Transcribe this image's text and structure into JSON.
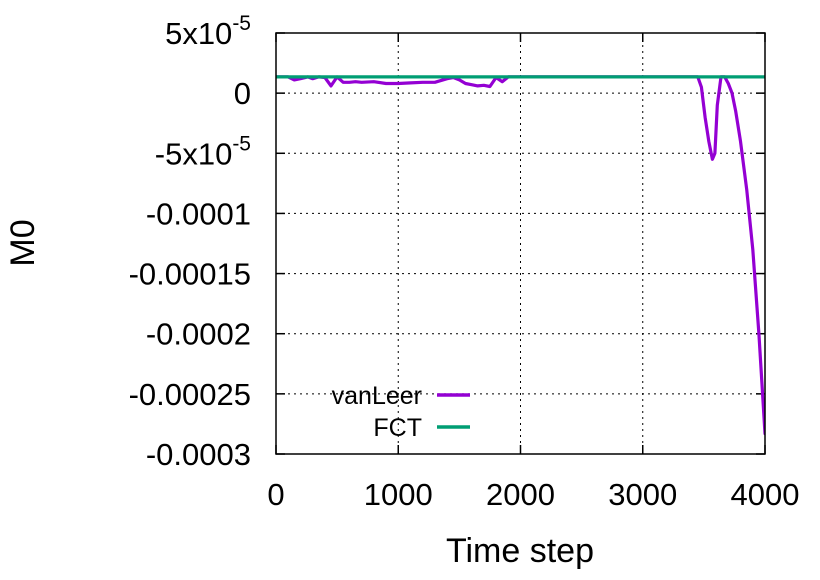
{
  "chart_data": {
    "type": "line",
    "title": "",
    "xlabel": "Time step",
    "ylabel": "M0",
    "xlim": [
      0,
      4000
    ],
    "ylim": [
      -0.0003,
      5e-05
    ],
    "grid": true,
    "legend_position": "bottom-left",
    "x_ticks": [
      {
        "value": 0,
        "label": "0"
      },
      {
        "value": 1000,
        "label": "1000"
      },
      {
        "value": 2000,
        "label": "2000"
      },
      {
        "value": 3000,
        "label": "3000"
      },
      {
        "value": 4000,
        "label": "4000"
      }
    ],
    "y_ticks": [
      {
        "value": 5e-05,
        "mantissa": "5x10",
        "exponent": "-5"
      },
      {
        "value": 0,
        "mantissa": "0"
      },
      {
        "value": -5e-05,
        "mantissa": "-5x10",
        "exponent": "-5"
      },
      {
        "value": -0.0001,
        "mantissa": "-0.0001"
      },
      {
        "value": -0.00015,
        "mantissa": "-0.00015"
      },
      {
        "value": -0.0002,
        "mantissa": "-0.0002"
      },
      {
        "value": -0.00025,
        "mantissa": "-0.00025"
      },
      {
        "value": -0.0003,
        "mantissa": "-0.0003"
      }
    ],
    "series": [
      {
        "name": "vanLeer",
        "color": "#9400d3",
        "x": [
          0,
          100,
          150,
          200,
          260,
          300,
          350,
          400,
          450,
          500,
          550,
          600,
          650,
          700,
          800,
          900,
          1000,
          1100,
          1200,
          1300,
          1400,
          1450,
          1500,
          1550,
          1600,
          1650,
          1700,
          1750,
          1800,
          1850,
          1900,
          1950,
          2000,
          3000,
          3450,
          3480,
          3510,
          3540,
          3570,
          3590,
          3610,
          3640,
          3670,
          3700,
          3730,
          3760,
          3800,
          3850,
          3900,
          3950,
          4000
        ],
        "y": [
          1.35e-05,
          1.35e-05,
          1.1e-05,
          1.2e-05,
          1.35e-05,
          1.2e-05,
          1.35e-05,
          1.3e-05,
          6e-06,
          1.35e-05,
          9e-06,
          9e-06,
          9.5e-06,
          9e-06,
          9.5e-06,
          8e-06,
          8e-06,
          8.5e-06,
          9e-06,
          9e-06,
          1.2e-05,
          1.3e-05,
          1.1e-05,
          8e-06,
          7e-06,
          6e-06,
          6.5e-06,
          5.5e-06,
          1.3e-05,
          9.5e-06,
          1.35e-05,
          1.35e-05,
          1.35e-05,
          1.35e-05,
          1.35e-05,
          5e-06,
          -2e-05,
          -4e-05,
          -5.5e-05,
          -5e-05,
          -1e-05,
          1.35e-05,
          1.35e-05,
          8e-06,
          0.0,
          -1.5e-05,
          -4e-05,
          -8e-05,
          -0.00013,
          -0.0002,
          -0.000283
        ]
      },
      {
        "name": "FCT",
        "color": "#009e73",
        "x": [
          0,
          4000
        ],
        "y": [
          1.35e-05,
          1.35e-05
        ]
      }
    ]
  }
}
